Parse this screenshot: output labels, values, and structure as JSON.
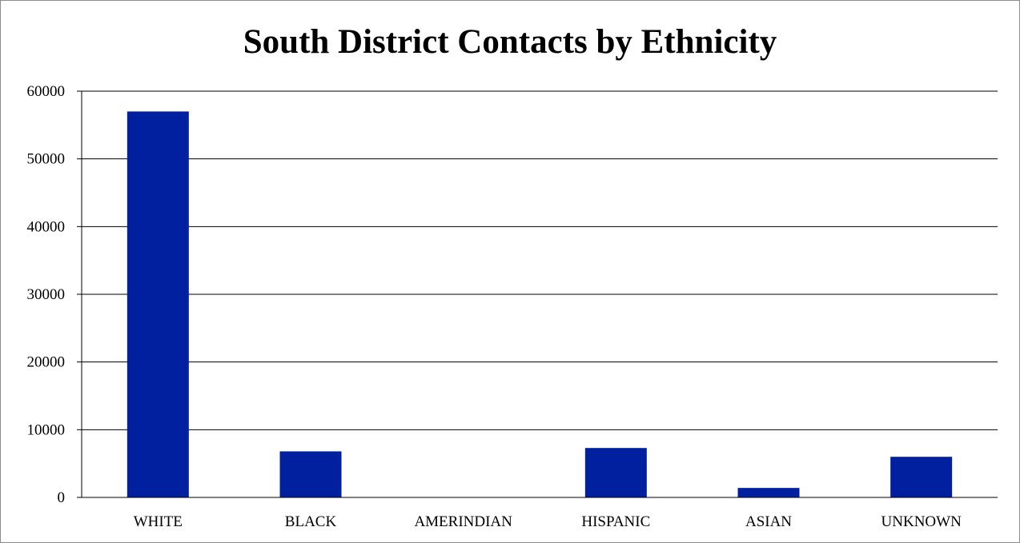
{
  "chart_data": {
    "type": "bar",
    "title": "South District Contacts by Ethnicity",
    "xlabel": "",
    "ylabel": "",
    "categories": [
      "WHITE",
      "BLACK",
      "AMERINDIAN",
      "HISPANIC",
      "ASIAN",
      "UNKNOWN"
    ],
    "values": [
      57000,
      6800,
      0,
      7300,
      1400,
      6000
    ],
    "ylim": [
      0,
      60000
    ],
    "yticks": [
      0,
      10000,
      20000,
      30000,
      40000,
      50000,
      60000
    ],
    "grid": true,
    "legend": "none",
    "colors": {
      "bar": "#0020a0",
      "grid": "#000000",
      "axis": "#000000"
    }
  }
}
